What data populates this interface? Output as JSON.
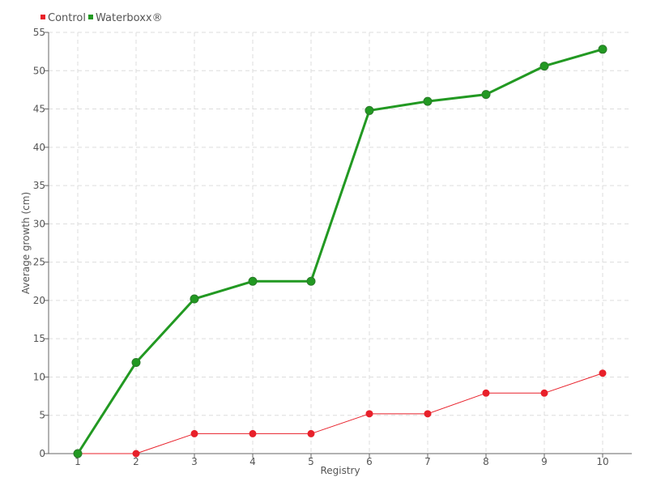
{
  "chart_data": {
    "type": "line",
    "title": "",
    "xlabel": "Registry",
    "ylabel": "Average growth (cm)",
    "x": [
      1,
      2,
      3,
      4,
      5,
      6,
      7,
      8,
      9,
      10
    ],
    "ylim": [
      0,
      55
    ],
    "yticks": [
      0,
      5,
      10,
      15,
      20,
      25,
      30,
      35,
      40,
      45,
      50,
      55
    ],
    "grid": true,
    "legend_position": "top-left",
    "series": [
      {
        "name": "Control",
        "color": "#e8202a",
        "values": [
          0,
          0,
          2.6,
          2.6,
          2.6,
          5.2,
          5.2,
          7.9,
          7.9,
          10.5
        ]
      },
      {
        "name": "Waterboxx®",
        "color": "#229922",
        "values": [
          0,
          11.9,
          20.2,
          22.5,
          22.5,
          44.8,
          46.0,
          46.9,
          50.6,
          52.8
        ]
      }
    ]
  }
}
